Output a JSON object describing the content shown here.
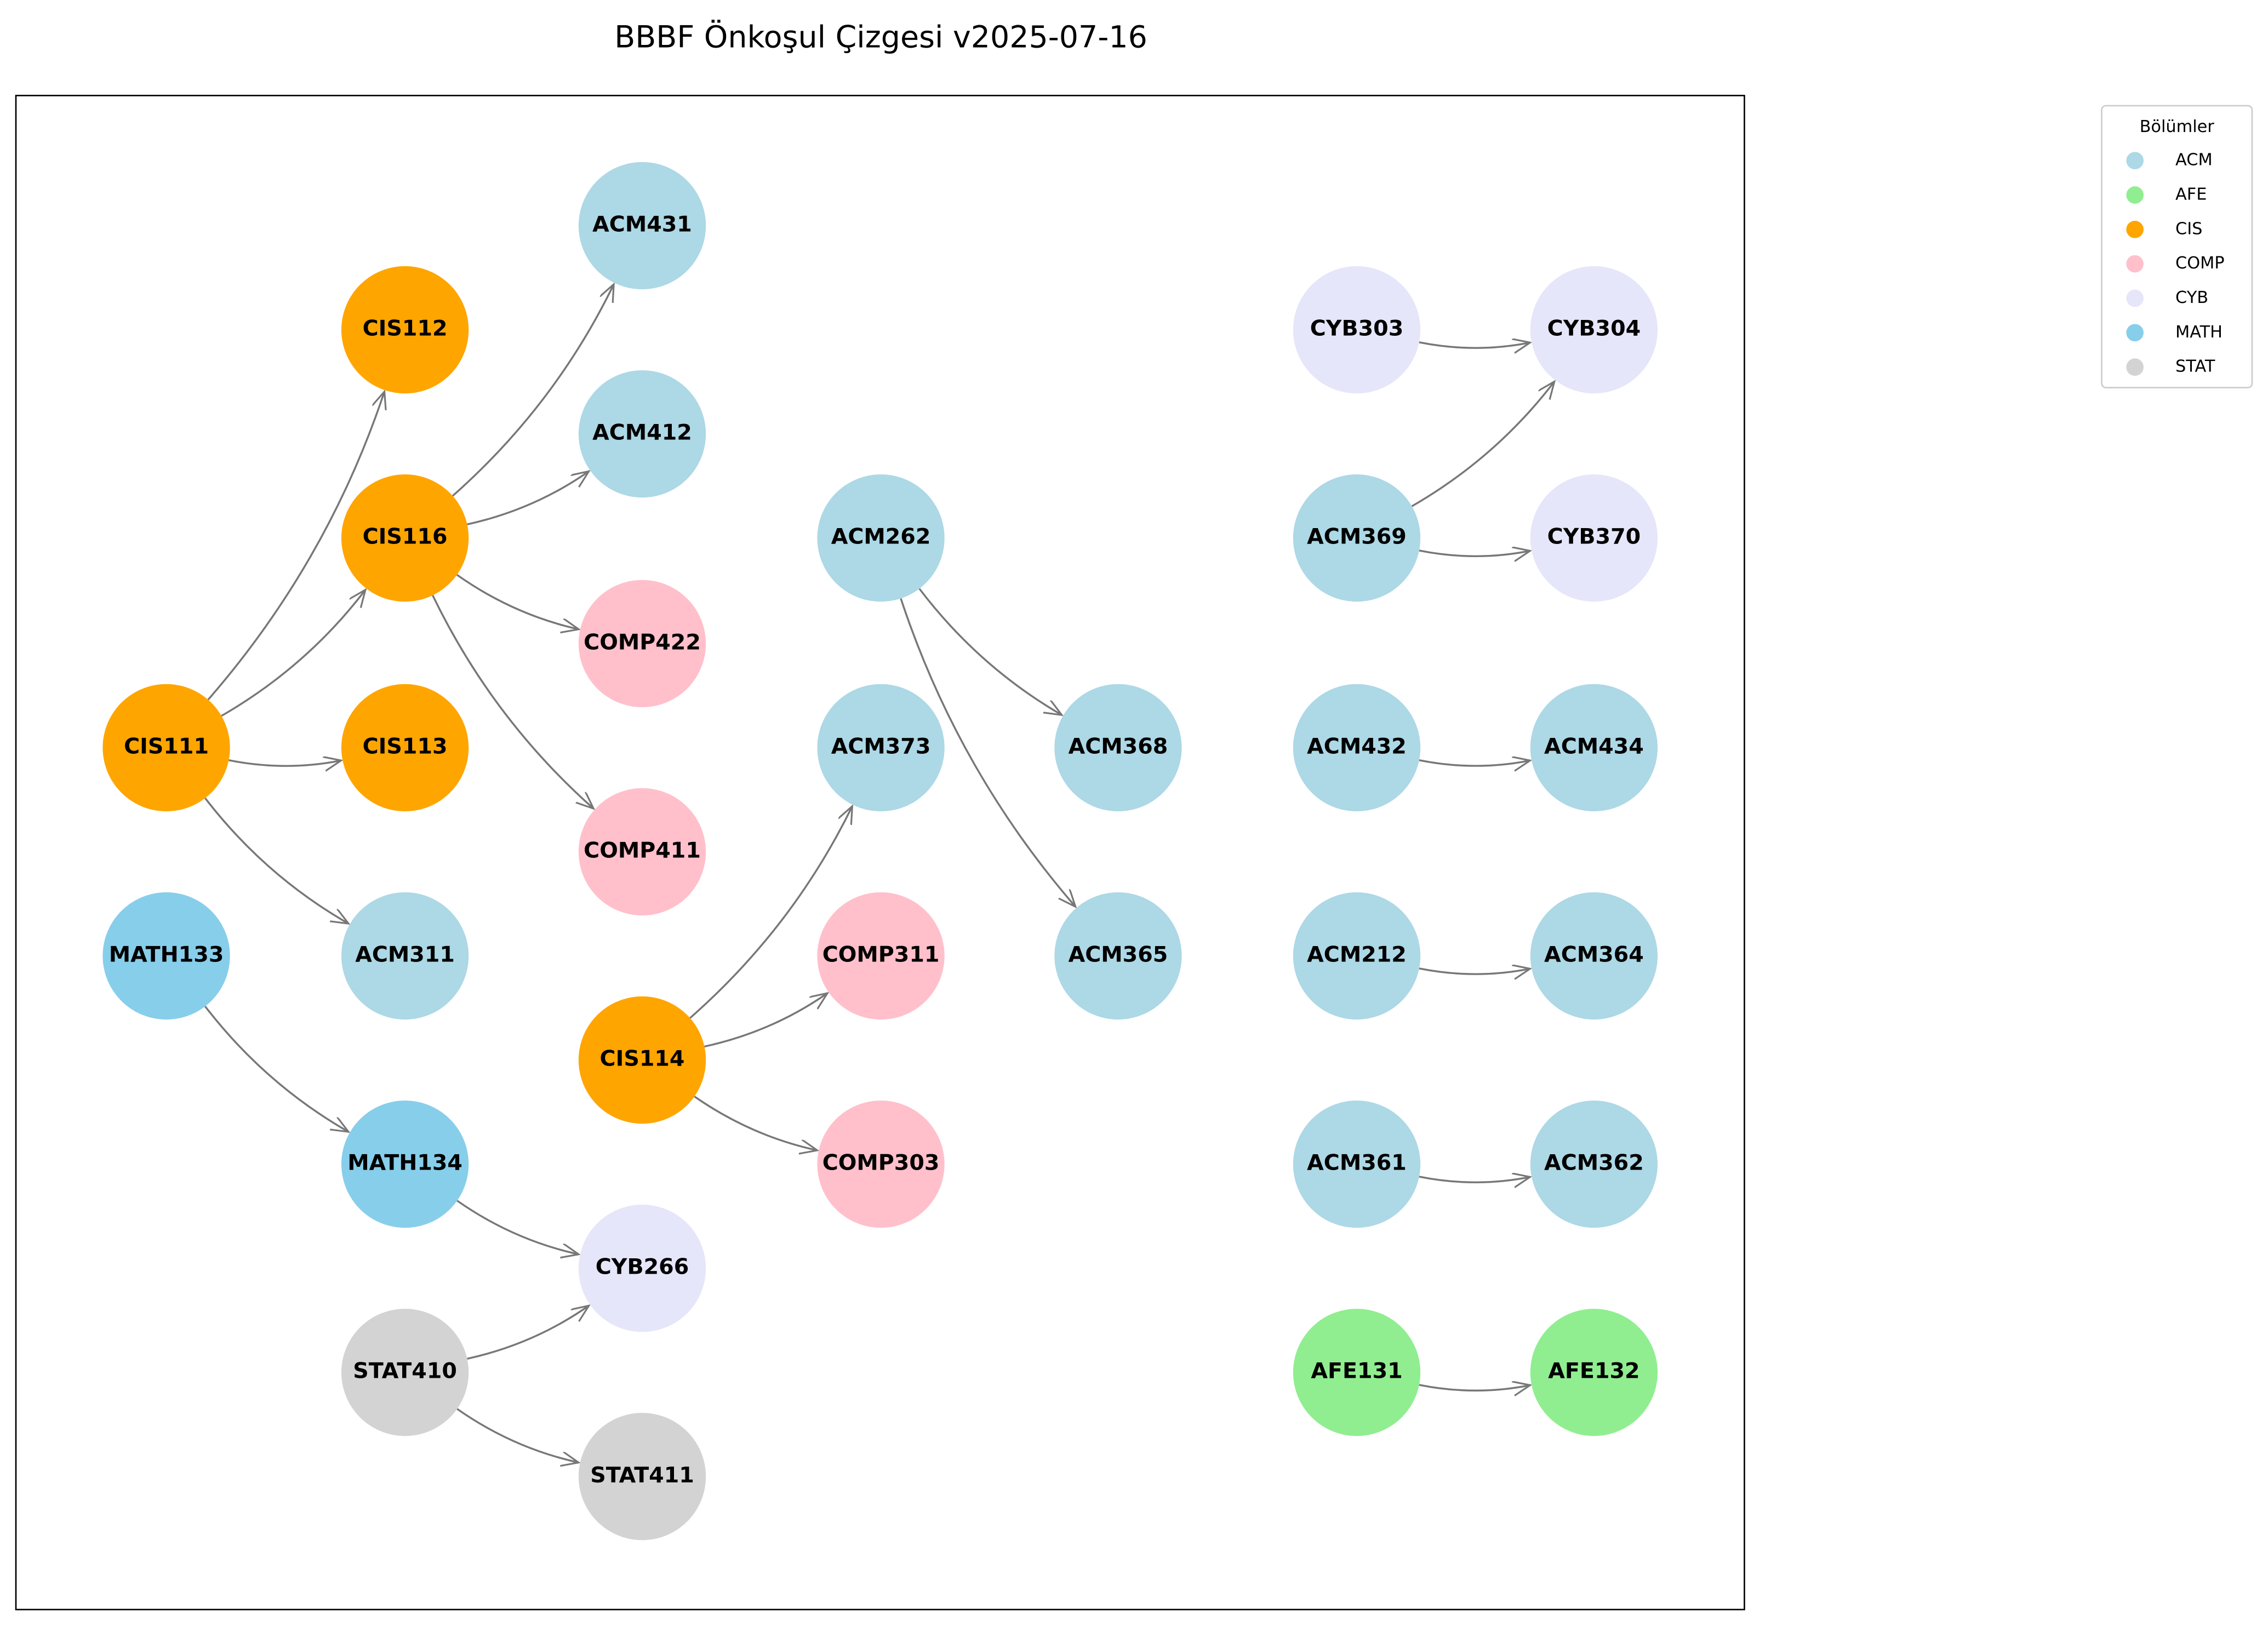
{
  "title": "BBBF Önkoşul Çizgesi v2025-07-16",
  "legend": {
    "title": "Bölümler",
    "entries": [
      {
        "name": "ACM",
        "color": "#add8e6"
      },
      {
        "name": "AFE",
        "color": "#90ee90"
      },
      {
        "name": "CIS",
        "color": "#ffa500"
      },
      {
        "name": "COMP",
        "color": "#ffc0cb"
      },
      {
        "name": "CYB",
        "color": "#e6e6fa"
      },
      {
        "name": "MATH",
        "color": "#87ceeb"
      },
      {
        "name": "STAT",
        "color": "#d3d3d3"
      }
    ]
  },
  "nodes": [
    {
      "label": "CIS111",
      "group": "CIS"
    },
    {
      "label": "MATH133",
      "group": "MATH"
    },
    {
      "label": "CIS112",
      "group": "CIS"
    },
    {
      "label": "CIS116",
      "group": "CIS"
    },
    {
      "label": "CIS113",
      "group": "CIS"
    },
    {
      "label": "ACM311",
      "group": "ACM"
    },
    {
      "label": "MATH134",
      "group": "MATH"
    },
    {
      "label": "STAT410",
      "group": "STAT"
    },
    {
      "label": "ACM431",
      "group": "ACM"
    },
    {
      "label": "ACM412",
      "group": "ACM"
    },
    {
      "label": "COMP422",
      "group": "COMP"
    },
    {
      "label": "COMP411",
      "group": "COMP"
    },
    {
      "label": "CIS114",
      "group": "CIS"
    },
    {
      "label": "CYB266",
      "group": "CYB"
    },
    {
      "label": "STAT411",
      "group": "STAT"
    },
    {
      "label": "ACM262",
      "group": "ACM"
    },
    {
      "label": "ACM373",
      "group": "ACM"
    },
    {
      "label": "COMP311",
      "group": "COMP"
    },
    {
      "label": "COMP303",
      "group": "COMP"
    },
    {
      "label": "ACM368",
      "group": "ACM"
    },
    {
      "label": "ACM365",
      "group": "ACM"
    },
    {
      "label": "CYB303",
      "group": "CYB"
    },
    {
      "label": "ACM369",
      "group": "ACM"
    },
    {
      "label": "ACM432",
      "group": "ACM"
    },
    {
      "label": "ACM212",
      "group": "ACM"
    },
    {
      "label": "ACM361",
      "group": "ACM"
    },
    {
      "label": "AFE131",
      "group": "AFE"
    },
    {
      "label": "CYB304",
      "group": "CYB"
    },
    {
      "label": "CYB370",
      "group": "CYB"
    },
    {
      "label": "ACM434",
      "group": "ACM"
    },
    {
      "label": "ACM364",
      "group": "ACM"
    },
    {
      "label": "ACM362",
      "group": "ACM"
    },
    {
      "label": "AFE132",
      "group": "AFE"
    }
  ],
  "edges": [
    {
      "from": 0,
      "to": 2
    },
    {
      "from": 0,
      "to": 3
    },
    {
      "from": 0,
      "to": 4
    },
    {
      "from": 0,
      "to": 5
    },
    {
      "from": 3,
      "to": 8
    },
    {
      "from": 3,
      "to": 9
    },
    {
      "from": 3,
      "to": 10
    },
    {
      "from": 3,
      "to": 11
    },
    {
      "from": 1,
      "to": 6
    },
    {
      "from": 6,
      "to": 13
    },
    {
      "from": 7,
      "to": 13
    },
    {
      "from": 7,
      "to": 14
    },
    {
      "from": 12,
      "to": 16
    },
    {
      "from": 12,
      "to": 17
    },
    {
      "from": 12,
      "to": 18
    },
    {
      "from": 15,
      "to": 19
    },
    {
      "from": 15,
      "to": 20
    },
    {
      "from": 21,
      "to": 27
    },
    {
      "from": 22,
      "to": 27
    },
    {
      "from": 22,
      "to": 28
    },
    {
      "from": 23,
      "to": 29
    },
    {
      "from": 24,
      "to": 30
    },
    {
      "from": 25,
      "to": 31
    },
    {
      "from": 26,
      "to": 32
    }
  ]
}
